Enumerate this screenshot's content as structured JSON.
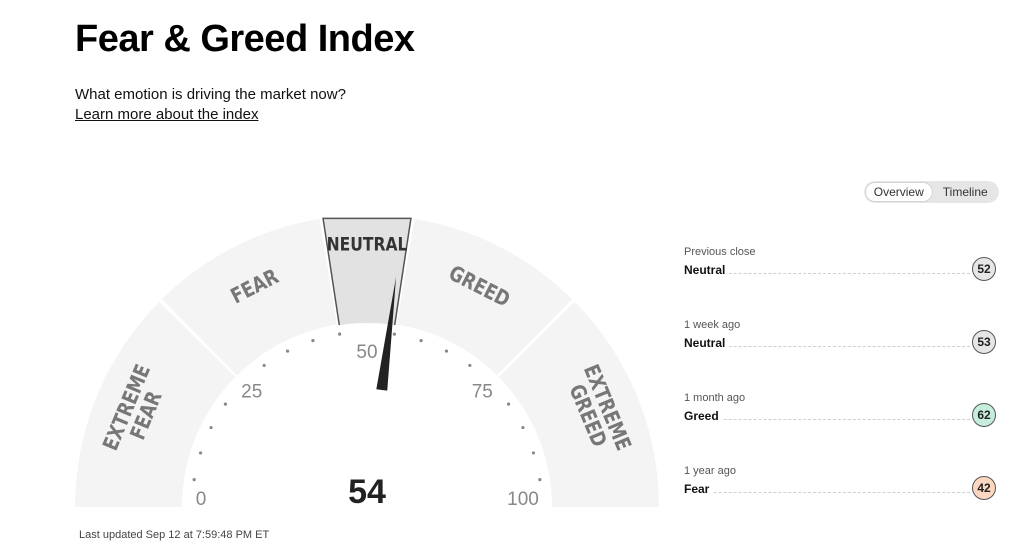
{
  "header": {
    "title": "Fear & Greed Index",
    "subtitle": "What emotion is driving the market now?",
    "learn_more": "Learn more about the index"
  },
  "view_toggle": {
    "options": [
      "Overview",
      "Timeline"
    ],
    "active": "Overview"
  },
  "gauge": {
    "value": 54,
    "min": 0,
    "max": 100,
    "active_zone": "NEUTRAL",
    "zones": [
      {
        "name": "EXTREME FEAR",
        "line1": "EXTREME",
        "line2": "FEAR",
        "from": 0,
        "to": 25
      },
      {
        "name": "FEAR",
        "line1": "FEAR",
        "line2": "",
        "from": 25,
        "to": 45
      },
      {
        "name": "NEUTRAL",
        "line1": "NEUTRAL",
        "line2": "",
        "from": 45,
        "to": 55
      },
      {
        "name": "GREED",
        "line1": "GREED",
        "line2": "",
        "from": 55,
        "to": 75
      },
      {
        "name": "EXTREME GREED",
        "line1": "EXTREME",
        "line2": "GREED",
        "from": 75,
        "to": 100
      }
    ],
    "scale_labels": [
      "0",
      "25",
      "50",
      "75",
      "100"
    ],
    "colors": {
      "zone": "#f4f4f4",
      "active_zone": "#e2e2e2",
      "needle": "#222222",
      "text": "#777777"
    }
  },
  "last_updated": "Last updated Sep 12 at 7:59:48 PM ET",
  "history": [
    {
      "label": "Previous close",
      "rating": "Neutral",
      "value": "52",
      "color": "#e6e6e6"
    },
    {
      "label": "1 week ago",
      "rating": "Neutral",
      "value": "53",
      "color": "#e6e6e6"
    },
    {
      "label": "1 month ago",
      "rating": "Greed",
      "value": "62",
      "color": "#c5eedd"
    },
    {
      "label": "1 year ago",
      "rating": "Fear",
      "value": "42",
      "color": "#fbd6c0"
    }
  ]
}
